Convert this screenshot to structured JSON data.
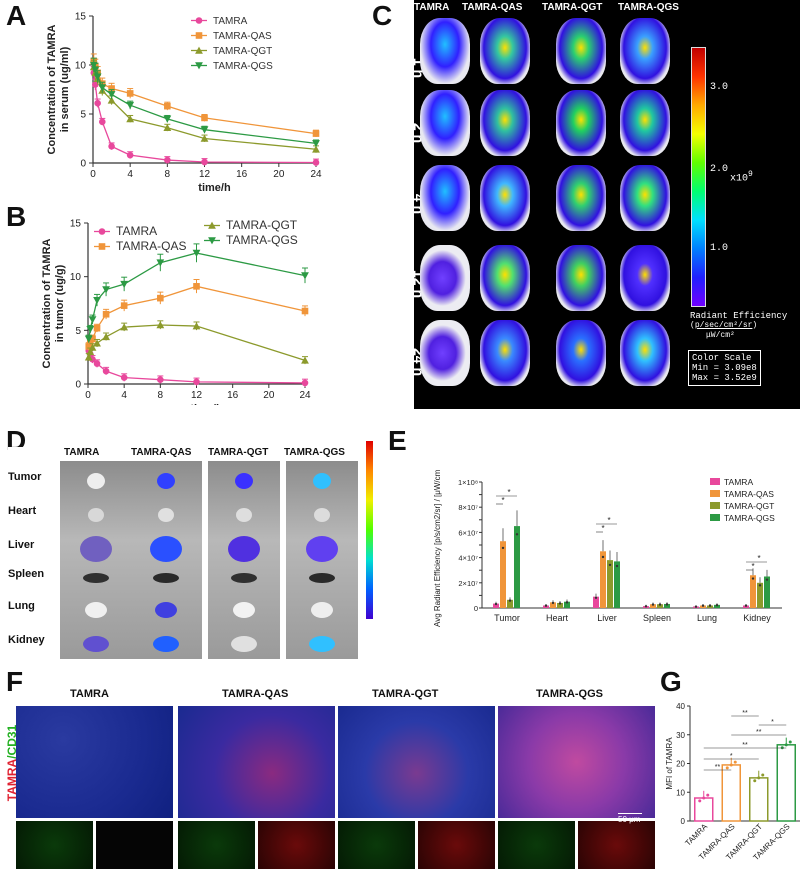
{
  "panels": {
    "A": "A",
    "B": "B",
    "C": "C",
    "D": "D",
    "E": "E",
    "F": "F",
    "G": "G"
  },
  "colors": {
    "TAMRA": "#e8489c",
    "TAMRA-QAS": "#f0953a",
    "TAMRA-QGT": "#8c9a2c",
    "TAMRA-QGS": "#2c9a44"
  },
  "chart_data": [
    {
      "id": "A",
      "type": "line",
      "xlabel": "time/h",
      "ylabel": "Concentration of TAMRA in serum (ug/ml)",
      "xticks": [
        0,
        4,
        8,
        12,
        16,
        20,
        24
      ],
      "yticks": [
        0,
        5,
        10,
        15
      ],
      "xlim": [
        0,
        24
      ],
      "ylim": [
        0,
        15
      ],
      "legend_position": "top-center",
      "x": [
        0.083,
        0.25,
        0.5,
        1,
        2,
        4,
        8,
        12,
        24
      ],
      "series": [
        {
          "name": "TAMRA",
          "marker": "circle",
          "values": [
            9.2,
            8.0,
            6.1,
            4.2,
            1.7,
            0.8,
            0.3,
            0.1,
            0.05
          ]
        },
        {
          "name": "TAMRA-QAS",
          "marker": "square",
          "values": [
            10.4,
            9.9,
            9.2,
            8.1,
            7.6,
            7.1,
            5.8,
            4.6,
            3.0
          ]
        },
        {
          "name": "TAMRA-QGT",
          "marker": "triangle-up",
          "values": [
            9.8,
            9.2,
            8.6,
            7.4,
            6.4,
            4.5,
            3.6,
            2.5,
            1.4
          ]
        },
        {
          "name": "TAMRA-QGS",
          "marker": "triangle-down",
          "values": [
            10.0,
            9.5,
            8.8,
            7.7,
            7.0,
            5.9,
            4.5,
            3.4,
            2.0
          ]
        }
      ]
    },
    {
      "id": "B",
      "type": "line",
      "xlabel": "time/h",
      "ylabel": "Concentration of TAMRA in tumor (ug/g)",
      "xticks": [
        0,
        4,
        8,
        12,
        16,
        20,
        24
      ],
      "yticks": [
        0,
        5,
        10,
        15
      ],
      "xlim": [
        0,
        24
      ],
      "ylim": [
        0,
        15
      ],
      "legend_position": "top",
      "x": [
        0.083,
        0.25,
        0.5,
        1,
        2,
        4,
        8,
        12,
        24
      ],
      "series": [
        {
          "name": "TAMRA",
          "marker": "circle",
          "values": [
            3.1,
            2.8,
            2.3,
            1.9,
            1.2,
            0.6,
            0.4,
            0.2,
            0.1
          ]
        },
        {
          "name": "TAMRA-QAS",
          "marker": "square",
          "values": [
            3.5,
            3.9,
            4.2,
            5.2,
            6.5,
            7.3,
            8.0,
            9.1,
            6.8
          ]
        },
        {
          "name": "TAMRA-QGT",
          "marker": "triangle-up",
          "values": [
            2.5,
            3.0,
            3.4,
            3.8,
            4.4,
            5.3,
            5.5,
            5.4,
            2.2
          ]
        },
        {
          "name": "TAMRA-QGS",
          "marker": "triangle-down",
          "values": [
            4.2,
            5.1,
            6.0,
            7.8,
            8.8,
            9.3,
            11.3,
            12.2,
            10.1
          ]
        }
      ]
    },
    {
      "id": "E",
      "type": "bar",
      "ylabel": "Avg Radiant Efficiency [p/s/cm2/sr] / [μW/cm2]",
      "yticks": [
        "0",
        "1×10⁷",
        "2×10⁷",
        "3×10⁷",
        "4×10⁷",
        "5×10⁷",
        "6×10⁷",
        "7×10⁷",
        "8×10⁷",
        "9×10⁷",
        "1×10⁸"
      ],
      "ylim": [
        0,
        100000000
      ],
      "legend_position": "top-right",
      "categories": [
        "Tumor",
        "Heart",
        "Liver",
        "Spleen",
        "Lung",
        "Kidney"
      ],
      "series": [
        {
          "name": "TAMRA",
          "values": [
            3500000,
            2000000,
            9000000,
            1500000,
            1200000,
            2000000
          ]
        },
        {
          "name": "TAMRA-QAS",
          "values": [
            53000000,
            4500000,
            45000000,
            3000000,
            2000000,
            26000000
          ]
        },
        {
          "name": "TAMRA-QGT",
          "values": [
            6500000,
            4000000,
            38000000,
            3000000,
            2000000,
            20000000
          ]
        },
        {
          "name": "TAMRA-QGS",
          "values": [
            65000000,
            5000000,
            37000000,
            3200000,
            2500000,
            25000000
          ]
        }
      ],
      "significance": "*"
    },
    {
      "id": "G",
      "type": "bar",
      "ylabel": "MFI of TAMRA",
      "yticks": [
        0,
        10,
        20,
        30,
        40
      ],
      "ylim": [
        0,
        40
      ],
      "categories": [
        "TAMRA",
        "TAMRA-QAS",
        "TAMRA-QGT",
        "TAMRA-QGS"
      ],
      "values": [
        8,
        19.5,
        15,
        26.5
      ],
      "significance_labels": [
        "**",
        "*",
        "**",
        "**",
        "*",
        "**"
      ]
    }
  ],
  "panelC": {
    "columns": [
      "TAMRA",
      "TAMRA-QAS",
      "TAMRA-QGT",
      "TAMRA-QGS"
    ],
    "rows": [
      "1 h",
      "2 h",
      "4 h",
      "12 h",
      "24 h"
    ],
    "scale_ticks": [
      "3.0",
      "2.0",
      "1.0"
    ],
    "scale_multiplier": "x10",
    "scale_exp": "9",
    "radiant_title": "Radiant Efficiency",
    "radiant_units_num": "p/sec/cm²/sr",
    "radiant_units_den": "μW/cm²",
    "color_scale_title": "Color Scale",
    "min_label": "Min = 3.09e8",
    "max_label": "Max = 3.52e9"
  },
  "panelD": {
    "columns": [
      "TAMRA",
      "TAMRA-QAS",
      "TAMRA-QGT",
      "TAMRA-QGS"
    ],
    "rows": [
      "Tumor",
      "Heart",
      "Liver",
      "Spleen",
      "Lung",
      "Kidney"
    ]
  },
  "panelF": {
    "columns": [
      "TAMRA",
      "TAMRA-QAS",
      "TAMRA-QGT",
      "TAMRA-QGS"
    ],
    "side_label_red": "TAMRA",
    "side_label_green": "/CD31",
    "scale_bar": "50 μm"
  }
}
